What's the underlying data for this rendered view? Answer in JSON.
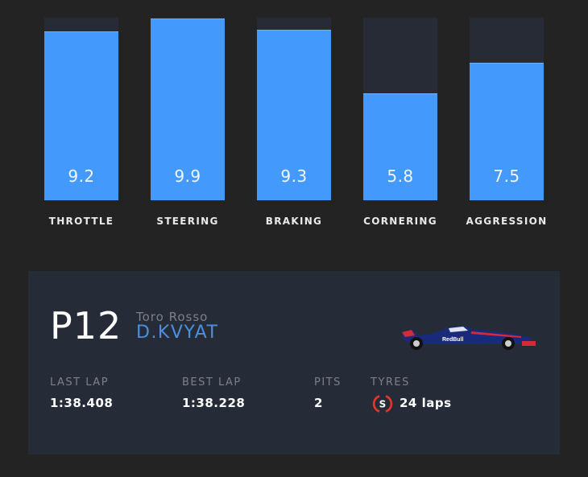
{
  "chart_data": {
    "type": "bar",
    "categories": [
      "THROTTLE",
      "STEERING",
      "BRAKING",
      "CORNERING",
      "AGGRESSION"
    ],
    "values": [
      9.2,
      9.9,
      9.3,
      5.8,
      7.5
    ],
    "value_labels": [
      "9.2",
      "9.9",
      "9.3",
      "5.8",
      "7.5"
    ],
    "ylim": [
      0,
      10
    ],
    "title": "",
    "xlabel": "",
    "ylabel": "",
    "grid": false,
    "colors": {
      "bar": "#4499fc",
      "track": "#262b36"
    }
  },
  "driver_card": {
    "position": "P12",
    "team": "Toro Rosso",
    "driver": "D.KVYAT",
    "car_icon": "f1-car-image",
    "stats": {
      "last_lap": {
        "label": "LAST LAP",
        "value": "1:38.408"
      },
      "best_lap": {
        "label": "BEST LAP",
        "value": "1:38.228"
      },
      "pits": {
        "label": "PITS",
        "value": "2"
      },
      "tyres": {
        "label": "TYRES",
        "compound": "S",
        "compound_color": "#e8372a",
        "value": "24 laps"
      }
    }
  }
}
